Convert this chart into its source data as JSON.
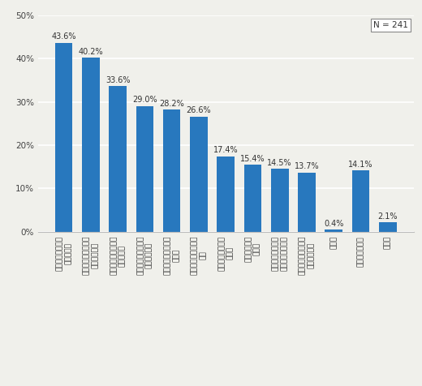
{
  "categories": [
    "定期的に分配金が\n受け取れる",
    "専門知識がなくても\n投賄ができる",
    "比較的高い利回りが\n期待できる",
    "少額でも株式投賄の\n面白味がある",
    "少額でも分散投賄が\nできる",
    "購入手続きが簡単で\nある",
    "海外投賄が手軽に\nできる",
    "積立て投賄が\nできる",
    "複利に回る商品が\n分配金が自動的に",
    "目的に応じて選べる\n種類が豊富で",
    "その他",
    "よくわからない",
    "無回答"
  ],
  "values": [
    43.6,
    40.2,
    33.6,
    29.0,
    28.2,
    26.6,
    17.4,
    15.4,
    14.5,
    13.7,
    0.4,
    14.1,
    2.1
  ],
  "bar_color": "#2878be",
  "background_color": "#f0f0eb",
  "ylim": [
    0,
    50
  ],
  "yticks": [
    0,
    10,
    20,
    30,
    40,
    50
  ],
  "ytick_labels": [
    "0%",
    "10%",
    "20%",
    "30%",
    "40%",
    "50%"
  ],
  "note": "N = 241",
  "value_fontsize": 7.0,
  "tick_fontsize": 7.5
}
